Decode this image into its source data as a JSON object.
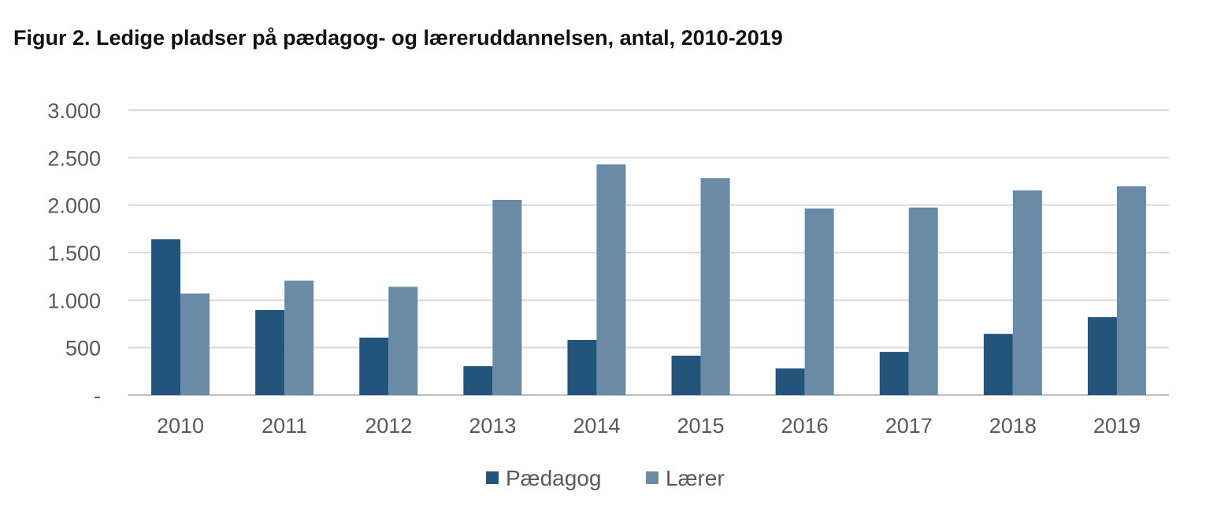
{
  "title": "Figur 2. Ledige pladser på pædagog- og læreruddannelsen, antal, 2010-2019",
  "chart_data": {
    "type": "bar",
    "title": "Figur 2. Ledige pladser på pædagog- og læreruddannelsen, antal, 2010-2019",
    "xlabel": "",
    "ylabel": "",
    "categories": [
      "2010",
      "2011",
      "2012",
      "2013",
      "2014",
      "2015",
      "2016",
      "2017",
      "2018",
      "2019"
    ],
    "series": [
      {
        "name": "Pædagog",
        "color": "#23547b",
        "values": [
          1640,
          895,
          605,
          305,
          580,
          415,
          280,
          455,
          645,
          820
        ]
      },
      {
        "name": "Lærer",
        "color": "#6a8aa5",
        "values": [
          1070,
          1205,
          1140,
          2055,
          2430,
          2285,
          1965,
          1975,
          2155,
          2200
        ]
      }
    ],
    "ylim": [
      0,
      3000
    ],
    "yticks": [
      {
        "value": 0,
        "label": "-"
      },
      {
        "value": 500,
        "label": "500"
      },
      {
        "value": 1000,
        "label": "1.000"
      },
      {
        "value": 1500,
        "label": "1.500"
      },
      {
        "value": 2000,
        "label": "2.000"
      },
      {
        "value": 2500,
        "label": "2.500"
      },
      {
        "value": 3000,
        "label": "3.000"
      }
    ],
    "grid": true,
    "legend_position": "bottom"
  }
}
